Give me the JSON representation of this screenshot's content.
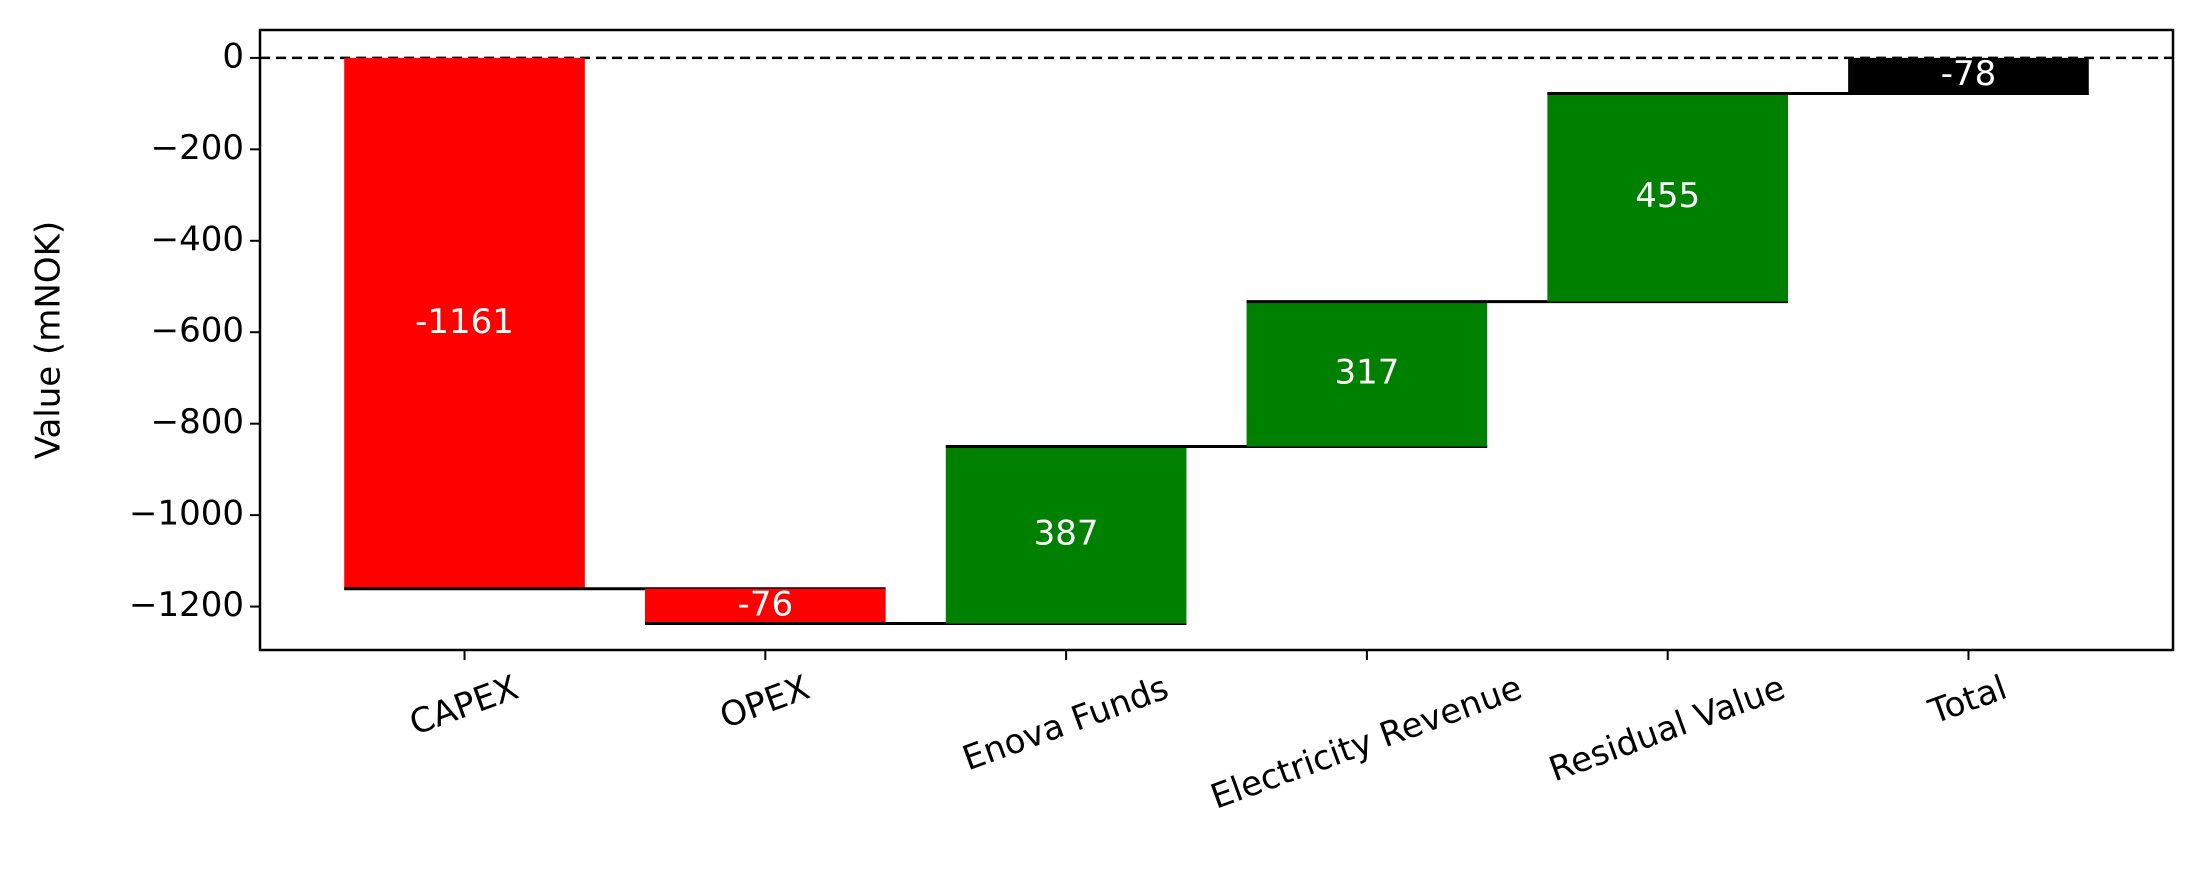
{
  "chart_data": {
    "type": "waterfall",
    "y_label": "Value (mNOK)",
    "categories": [
      "CAPEX",
      "OPEX",
      "Enova Funds",
      "Electricity Revenue",
      "Residual Value",
      "Total"
    ],
    "values": [
      -1161,
      -76,
      387,
      317,
      455,
      -78
    ],
    "colors": [
      "#ff0000",
      "#ff0000",
      "#008000",
      "#008000",
      "#008000",
      "#000000"
    ],
    "total_index": 5,
    "ylim": [
      -1295,
      61
    ],
    "yticks": [
      {
        "value": -1200,
        "label": "−1200"
      },
      {
        "value": -1000,
        "label": "−1000"
      },
      {
        "value": -800,
        "label": "−800"
      },
      {
        "value": -600,
        "label": "−600"
      },
      {
        "value": -400,
        "label": "−400"
      },
      {
        "value": -200,
        "label": "−200"
      },
      0
    ],
    "grid": false
  }
}
